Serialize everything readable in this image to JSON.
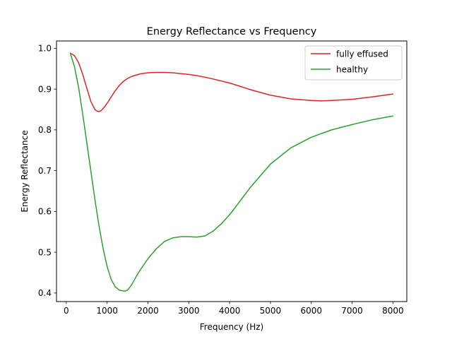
{
  "chart_data": {
    "type": "line",
    "title": "Energy Reflectance vs Frequency",
    "xlabel": "Frequency (Hz)",
    "ylabel": "Energy Reflectance",
    "xlim": [
      -240,
      8340
    ],
    "ylim": [
      0.379,
      1.018
    ],
    "xticks": [
      0,
      1000,
      2000,
      3000,
      4000,
      5000,
      6000,
      7000,
      8000
    ],
    "yticks": [
      0.4,
      0.5,
      0.6,
      0.7,
      0.8,
      0.9,
      1.0
    ],
    "xtick_labels": [
      "0",
      "1000",
      "2000",
      "3000",
      "4000",
      "5000",
      "6000",
      "7000",
      "8000"
    ],
    "ytick_labels": [
      "0.4",
      "0.5",
      "0.6",
      "0.7",
      "0.8",
      "0.9",
      "1.0"
    ],
    "grid": false,
    "legend_position": "top-right",
    "series": [
      {
        "name": "fully effused",
        "color": "#d62728",
        "x": [
          100,
          200,
          300,
          400,
          500,
          600,
          700,
          750,
          800,
          850,
          900,
          1000,
          1100,
          1200,
          1300,
          1400,
          1500,
          1600,
          1800,
          2000,
          2200,
          2400,
          2600,
          2800,
          3000,
          3200,
          3500,
          4000,
          4500,
          5000,
          5500,
          6000,
          6250,
          6500,
          7000,
          7500,
          8000
        ],
        "y": [
          0.988,
          0.982,
          0.965,
          0.937,
          0.903,
          0.87,
          0.85,
          0.846,
          0.845,
          0.847,
          0.852,
          0.865,
          0.881,
          0.896,
          0.909,
          0.919,
          0.926,
          0.931,
          0.937,
          0.94,
          0.941,
          0.941,
          0.94,
          0.938,
          0.936,
          0.933,
          0.927,
          0.915,
          0.899,
          0.885,
          0.876,
          0.872,
          0.871,
          0.872,
          0.875,
          0.881,
          0.888
        ]
      },
      {
        "name": "healthy",
        "color": "#2ca02c",
        "x": [
          100,
          200,
          300,
          400,
          500,
          600,
          700,
          800,
          900,
          1000,
          1100,
          1200,
          1300,
          1400,
          1450,
          1500,
          1600,
          1700,
          1800,
          2000,
          2200,
          2400,
          2600,
          2800,
          3000,
          3200,
          3400,
          3600,
          3800,
          4000,
          4200,
          4500,
          5000,
          5500,
          6000,
          6500,
          7000,
          7500,
          8000
        ],
        "y": [
          0.988,
          0.955,
          0.905,
          0.84,
          0.77,
          0.7,
          0.63,
          0.565,
          0.51,
          0.465,
          0.433,
          0.415,
          0.407,
          0.405,
          0.405,
          0.407,
          0.42,
          0.438,
          0.455,
          0.484,
          0.508,
          0.526,
          0.535,
          0.538,
          0.538,
          0.537,
          0.54,
          0.552,
          0.57,
          0.592,
          0.618,
          0.658,
          0.716,
          0.756,
          0.782,
          0.8,
          0.813,
          0.825,
          0.834
        ]
      }
    ]
  }
}
